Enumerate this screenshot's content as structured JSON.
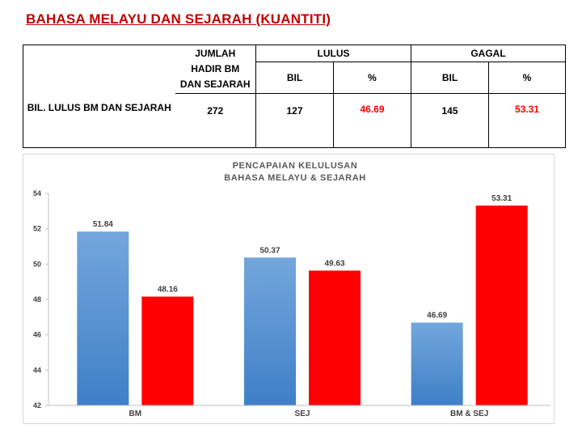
{
  "page": {
    "title": "BAHASA MELAYU DAN SEJARAH (KUANTITI)"
  },
  "summary_table": {
    "row_label": "BIL. LULUS BM DAN SEJARAH",
    "col_jumlah_lines": [
      "JUMLAH",
      "HADIR BM",
      "DAN SEJARAH"
    ],
    "col_lulus": "LULUS",
    "col_gagal": "GAGAL",
    "sub_bil": "BIL",
    "sub_pct": "%",
    "values": {
      "jumlah": "272",
      "lulus_bil": "127",
      "lulus_pct": "46.69",
      "gagal_bil": "145",
      "gagal_pct": "53.31"
    }
  },
  "colors": {
    "lulus": "#5b9bd5",
    "gagal": "#ff0000"
  },
  "chart_data": {
    "type": "bar",
    "title_lines": [
      "PENCAPAIAN KELULUSAN",
      "BAHASA MELAYU & SEJARAH"
    ],
    "categories": [
      "BM",
      "SEJ",
      "BM & SEJ"
    ],
    "series": [
      {
        "key": "lulus",
        "values": [
          51.84,
          50.37,
          46.69
        ]
      },
      {
        "key": "gagal",
        "values": [
          48.16,
          49.63,
          53.31
        ]
      }
    ],
    "data_labels": [
      [
        "51.84",
        "50.37",
        "46.69"
      ],
      [
        "48.16",
        "49.63",
        "53.31"
      ]
    ],
    "ylim": [
      42,
      54
    ],
    "yticks": [
      42,
      44,
      46,
      48,
      50,
      52,
      54
    ],
    "grid": false,
    "legend": "none"
  }
}
